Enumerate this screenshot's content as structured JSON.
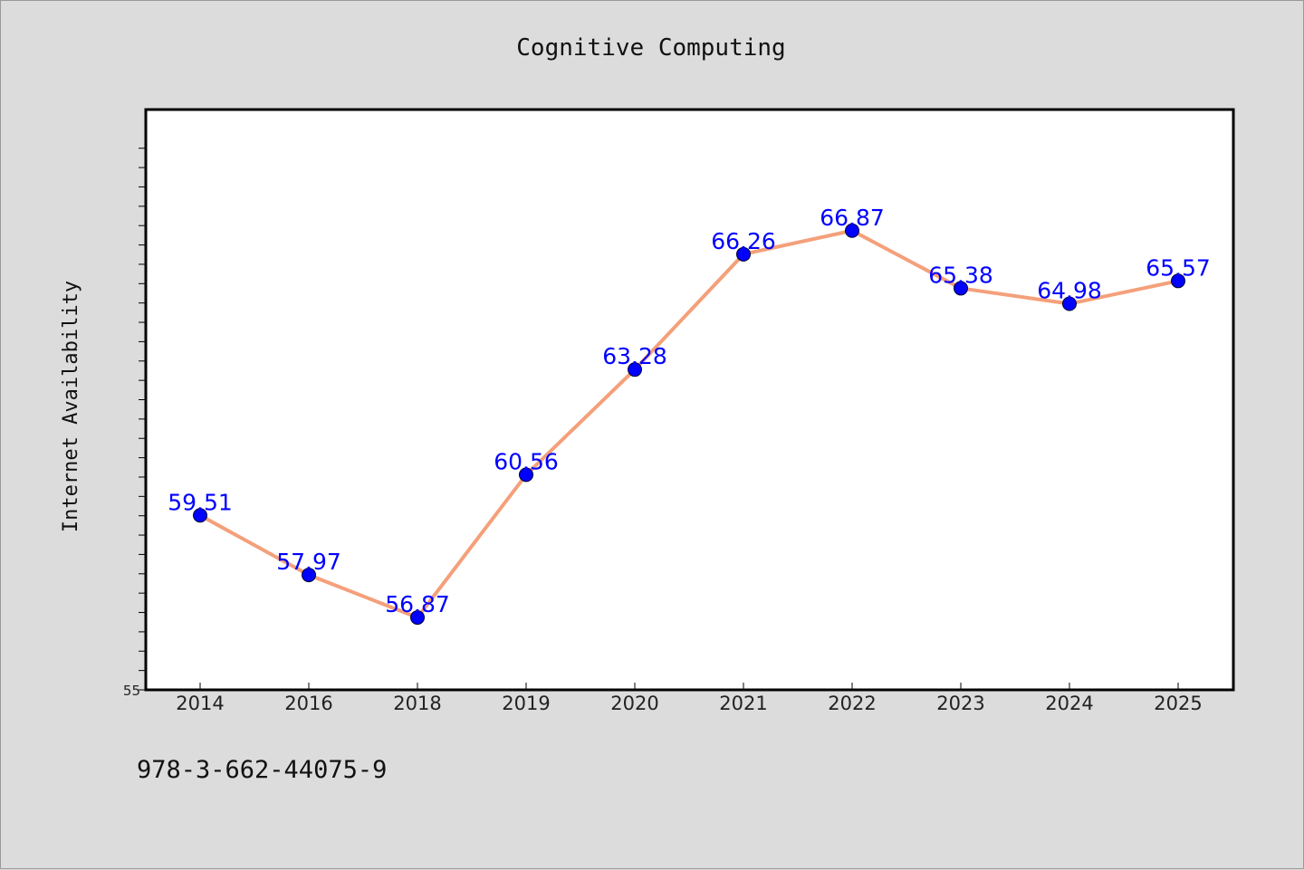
{
  "page": {
    "isbn": "978-3-662-44075-9"
  },
  "colors": {
    "background": "#dcdcdc",
    "plot_background": "#ffffff",
    "line": "#f4a07a",
    "marker": "#0000ff",
    "data_label": "#0000ff"
  },
  "chart_data": {
    "type": "line",
    "title": "Cognitive Computing",
    "xlabel": "",
    "ylabel": "Internet Availability",
    "categories": [
      "2014",
      "2016",
      "2018",
      "2019",
      "2020",
      "2021",
      "2022",
      "2023",
      "2024",
      "2025"
    ],
    "values": [
      59.51,
      57.97,
      56.87,
      60.56,
      63.28,
      66.26,
      66.87,
      65.38,
      64.98,
      65.57
    ],
    "data_labels": [
      "59.51",
      "57.97",
      "56.87",
      "60.56",
      "63.28",
      "66.26",
      "66.87",
      "65.38",
      "64.98",
      "65.57"
    ],
    "ylim": [
      55,
      70
    ],
    "ytick_labels": [
      "55"
    ],
    "grid": false,
    "legend": "none"
  }
}
